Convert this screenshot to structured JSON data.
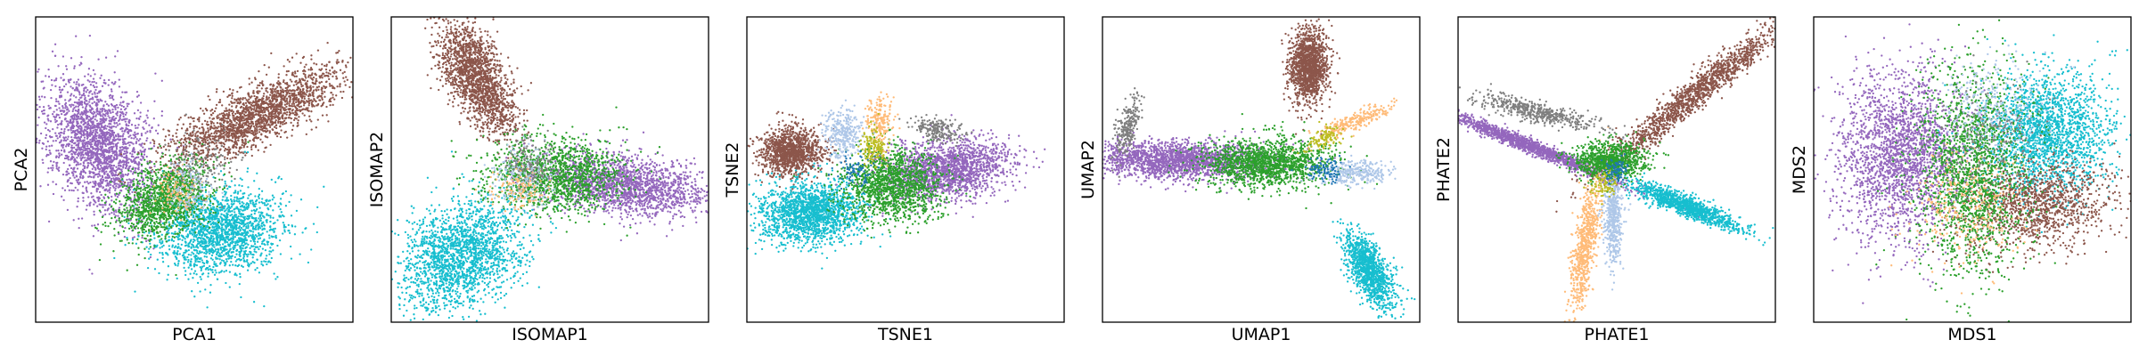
{
  "figure": {
    "palette": {
      "purple": "#9467bd",
      "brown": "#8c564b",
      "cyan": "#17becf",
      "green": "#2ca02c",
      "gray": "#7f7f7f",
      "light_blue": "#aec7e8",
      "orange": "#ffbb78",
      "dark_blue": "#1f77b4",
      "olive": "#bcbd22"
    }
  },
  "chart_data": [
    {
      "type": "scatter",
      "xlabel": "PCA1",
      "ylabel": "PCA2",
      "xticks": [],
      "yticks": [],
      "grid": false,
      "legend": "none",
      "xlim": [
        0,
        100
      ],
      "ylim": [
        0,
        100
      ],
      "clusters": [
        {
          "color": "purple",
          "n": 2200,
          "cx": 20,
          "cy": 58,
          "sx": 8,
          "sy": 11,
          "rho": -0.3
        },
        {
          "color": "brown",
          "n": 2000,
          "cx": 70,
          "cy": 68,
          "sx": 14,
          "sy": 8,
          "rho": 0.8
        },
        {
          "color": "cyan",
          "n": 1800,
          "cx": 58,
          "cy": 30,
          "sx": 10,
          "sy": 7,
          "rho": 0.1
        },
        {
          "color": "green",
          "n": 1300,
          "cx": 40,
          "cy": 40,
          "sx": 7,
          "sy": 6,
          "rho": 0.3
        },
        {
          "color": "gray",
          "n": 150,
          "cx": 52,
          "cy": 52,
          "sx": 5,
          "sy": 5,
          "rho": 0
        },
        {
          "color": "orange",
          "n": 120,
          "cx": 45,
          "cy": 42,
          "sx": 4,
          "sy": 4,
          "rho": 0
        },
        {
          "color": "light_blue",
          "n": 120,
          "cx": 48,
          "cy": 45,
          "sx": 4,
          "sy": 4,
          "rho": 0
        }
      ]
    },
    {
      "type": "scatter",
      "xlabel": "ISOMAP1",
      "ylabel": "ISOMAP2",
      "xticks": [],
      "yticks": [],
      "grid": false,
      "legend": "none",
      "xlim": [
        0,
        100
      ],
      "ylim": [
        0,
        100
      ],
      "clusters": [
        {
          "color": "brown",
          "n": 1800,
          "cx": 27,
          "cy": 80,
          "sx": 6,
          "sy": 9,
          "rho": -0.6
        },
        {
          "color": "purple",
          "n": 1800,
          "cx": 74,
          "cy": 45,
          "sx": 13,
          "sy": 5,
          "rho": -0.3
        },
        {
          "color": "cyan",
          "n": 2000,
          "cx": 22,
          "cy": 22,
          "sx": 10,
          "sy": 9,
          "rho": 0.3
        },
        {
          "color": "green",
          "n": 1400,
          "cx": 52,
          "cy": 48,
          "sx": 11,
          "sy": 6,
          "rho": 0
        },
        {
          "color": "light_blue",
          "n": 200,
          "cx": 42,
          "cy": 47,
          "sx": 5,
          "sy": 5,
          "rho": 0
        },
        {
          "color": "orange",
          "n": 120,
          "cx": 40,
          "cy": 44,
          "sx": 4,
          "sy": 4,
          "rho": 0
        },
        {
          "color": "gray",
          "n": 120,
          "cx": 44,
          "cy": 52,
          "sx": 4,
          "sy": 4,
          "rho": 0
        }
      ]
    },
    {
      "type": "scatter",
      "xlabel": "TSNE1",
      "ylabel": "TSNE2",
      "xticks": [],
      "yticks": [],
      "grid": false,
      "legend": "none",
      "xlim": [
        0,
        100
      ],
      "ylim": [
        0,
        100
      ],
      "clusters": [
        {
          "color": "brown",
          "n": 1200,
          "cx": 14,
          "cy": 56,
          "sx": 5,
          "sy": 4,
          "rho": 0
        },
        {
          "color": "cyan",
          "n": 1800,
          "cx": 20,
          "cy": 36,
          "sx": 8,
          "sy": 5,
          "rho": 0.1
        },
        {
          "color": "purple",
          "n": 1800,
          "cx": 63,
          "cy": 50,
          "sx": 10,
          "sy": 5,
          "rho": 0.2
        },
        {
          "color": "green",
          "n": 1400,
          "cx": 46,
          "cy": 45,
          "sx": 8,
          "sy": 6,
          "rho": 0
        },
        {
          "color": "light_blue",
          "n": 300,
          "cx": 30,
          "cy": 62,
          "sx": 3,
          "sy": 4,
          "rho": 0
        },
        {
          "color": "orange",
          "n": 200,
          "cx": 42,
          "cy": 66,
          "sx": 2,
          "sy": 4,
          "rho": 0
        },
        {
          "color": "gray",
          "n": 200,
          "cx": 60,
          "cy": 63,
          "sx": 4,
          "sy": 2,
          "rho": -0.3
        },
        {
          "color": "olive",
          "n": 150,
          "cx": 40,
          "cy": 57,
          "sx": 2,
          "sy": 3,
          "rho": 0
        },
        {
          "color": "dark_blue",
          "n": 80,
          "cx": 34,
          "cy": 50,
          "sx": 3,
          "sy": 3,
          "rho": 0
        }
      ]
    },
    {
      "type": "scatter",
      "xlabel": "UMAP1",
      "ylabel": "UMAP2",
      "xticks": [],
      "yticks": [],
      "grid": false,
      "legend": "none",
      "xlim": [
        0,
        100
      ],
      "ylim": [
        0,
        100
      ],
      "clusters": [
        {
          "color": "brown",
          "n": 1400,
          "cx": 65,
          "cy": 84,
          "sx": 3,
          "sy": 6,
          "rho": 0
        },
        {
          "color": "purple",
          "n": 2000,
          "cx": 24,
          "cy": 53,
          "sx": 14,
          "sy": 3,
          "rho": -0.1
        },
        {
          "color": "green",
          "n": 1500,
          "cx": 52,
          "cy": 52,
          "sx": 10,
          "sy": 4,
          "rho": 0
        },
        {
          "color": "cyan",
          "n": 1200,
          "cx": 84,
          "cy": 17,
          "sx": 4,
          "sy": 6,
          "rho": -0.6
        },
        {
          "color": "light_blue",
          "n": 300,
          "cx": 80,
          "cy": 49,
          "sx": 6,
          "sy": 2,
          "rho": 0
        },
        {
          "color": "orange",
          "n": 250,
          "cx": 80,
          "cy": 66,
          "sx": 6,
          "sy": 3,
          "rho": 0.85
        },
        {
          "color": "gray",
          "n": 250,
          "cx": 8,
          "cy": 64,
          "sx": 2,
          "sy": 5,
          "rho": 0.6
        },
        {
          "color": "olive",
          "n": 120,
          "cx": 70,
          "cy": 60,
          "sx": 3,
          "sy": 2,
          "rho": 0.5
        },
        {
          "color": "dark_blue",
          "n": 100,
          "cx": 70,
          "cy": 50,
          "sx": 3,
          "sy": 2,
          "rho": 0
        }
      ]
    },
    {
      "type": "scatter",
      "xlabel": "PHATE1",
      "ylabel": "PHATE2",
      "xticks": [],
      "yticks": [],
      "grid": false,
      "legend": "none",
      "xlim": [
        0,
        100
      ],
      "ylim": [
        0,
        100
      ],
      "clusters": [
        {
          "color": "purple",
          "n": 1500,
          "cx": 22,
          "cy": 58,
          "sx": 14,
          "sy": 6,
          "rho": -0.98
        },
        {
          "color": "brown",
          "n": 1500,
          "cx": 75,
          "cy": 75,
          "sx": 14,
          "sy": 12,
          "rho": 0.97
        },
        {
          "color": "cyan",
          "n": 1200,
          "cx": 72,
          "cy": 38,
          "sx": 9,
          "sy": 4,
          "rho": -0.9
        },
        {
          "color": "orange",
          "n": 700,
          "cx": 40,
          "cy": 25,
          "sx": 2.5,
          "sy": 12,
          "rho": 0.7
        },
        {
          "color": "light_blue",
          "n": 500,
          "cx": 49,
          "cy": 35,
          "sx": 1.5,
          "sy": 8,
          "rho": 0
        },
        {
          "color": "green",
          "n": 900,
          "cx": 48,
          "cy": 53,
          "sx": 6,
          "sy": 3,
          "rho": 0
        },
        {
          "color": "gray",
          "n": 500,
          "cx": 24,
          "cy": 69,
          "sx": 10,
          "sy": 3,
          "rho": -0.8
        },
        {
          "color": "dark_blue",
          "n": 80,
          "cx": 50,
          "cy": 50,
          "sx": 2,
          "sy": 2,
          "rho": 0
        },
        {
          "color": "olive",
          "n": 80,
          "cx": 46,
          "cy": 45,
          "sx": 2,
          "sy": 2,
          "rho": 0
        }
      ]
    },
    {
      "type": "scatter",
      "xlabel": "MDS1",
      "ylabel": "MDS2",
      "xticks": [],
      "yticks": [],
      "grid": false,
      "legend": "none",
      "xlim": [
        0,
        100
      ],
      "ylim": [
        0,
        100
      ],
      "clusters": [
        {
          "color": "purple",
          "n": 2200,
          "cx": 28,
          "cy": 55,
          "sx": 10,
          "sy": 14,
          "rho": 0
        },
        {
          "color": "cyan",
          "n": 2000,
          "cx": 74,
          "cy": 62,
          "sx": 10,
          "sy": 10,
          "rho": 0
        },
        {
          "color": "brown",
          "n": 1200,
          "cx": 70,
          "cy": 38,
          "sx": 12,
          "sy": 7,
          "rho": 0.2
        },
        {
          "color": "green",
          "n": 1800,
          "cx": 50,
          "cy": 50,
          "sx": 9,
          "sy": 17,
          "rho": 0
        },
        {
          "color": "light_blue",
          "n": 300,
          "cx": 56,
          "cy": 70,
          "sx": 8,
          "sy": 8,
          "rho": 0
        },
        {
          "color": "orange",
          "n": 300,
          "cx": 48,
          "cy": 38,
          "sx": 9,
          "sy": 9,
          "rho": 0
        },
        {
          "color": "gray",
          "n": 200,
          "cx": 55,
          "cy": 60,
          "sx": 8,
          "sy": 8,
          "rho": 0
        }
      ]
    }
  ]
}
